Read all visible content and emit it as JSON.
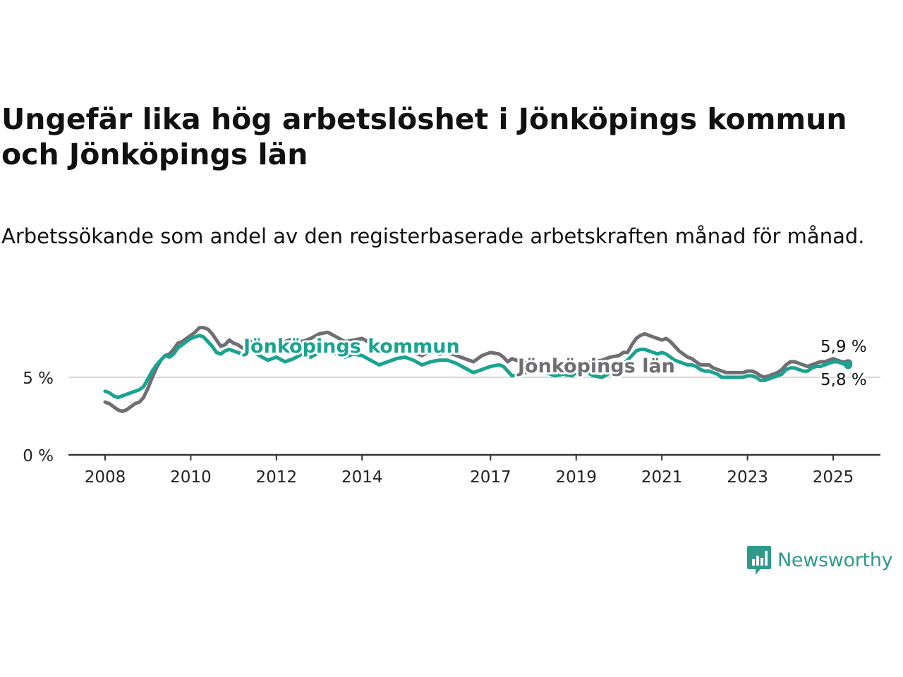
{
  "title": "Ungefär lika hög arbetslöshet i Jönköpings kommun och Jönköpings län",
  "subtitle": "Arbetssökande som andel av den registerbaserade arbetskraften månad för månad.",
  "brand": {
    "name": "Newsworthy",
    "icon": "newsworthy-logo-icon",
    "color": "#2f9a8c"
  },
  "chart_data": {
    "type": "line",
    "ylim": [
      0,
      8.8
    ],
    "y_ticks": [
      {
        "value": 0,
        "label": "0 %"
      },
      {
        "value": 5,
        "label": "5 %"
      }
    ],
    "x_range": [
      2008.0,
      2025.6
    ],
    "x_ticks": [
      {
        "value": 2008,
        "label": "2008"
      },
      {
        "value": 2010,
        "label": "2010"
      },
      {
        "value": 2012,
        "label": "2012"
      },
      {
        "value": 2014,
        "label": "2014"
      },
      {
        "value": 2017,
        "label": "2017"
      },
      {
        "value": 2019,
        "label": "2019"
      },
      {
        "value": 2021,
        "label": "2021"
      },
      {
        "value": 2023,
        "label": "2023"
      },
      {
        "value": 2025,
        "label": "2025"
      }
    ],
    "grid": "horizontal",
    "series": [
      {
        "name": "Jönköpings län",
        "color": "#6e6e73",
        "end_label": "5,9 %",
        "points": [
          [
            2008.0,
            3.4
          ],
          [
            2008.1,
            3.3
          ],
          [
            2008.2,
            3.1
          ],
          [
            2008.3,
            2.9
          ],
          [
            2008.4,
            2.8
          ],
          [
            2008.5,
            2.9
          ],
          [
            2008.6,
            3.1
          ],
          [
            2008.7,
            3.3
          ],
          [
            2008.8,
            3.4
          ],
          [
            2008.9,
            3.7
          ],
          [
            2009.0,
            4.3
          ],
          [
            2009.1,
            5.0
          ],
          [
            2009.2,
            5.6
          ],
          [
            2009.3,
            6.1
          ],
          [
            2009.4,
            6.4
          ],
          [
            2009.5,
            6.5
          ],
          [
            2009.6,
            6.8
          ],
          [
            2009.7,
            7.2
          ],
          [
            2009.8,
            7.3
          ],
          [
            2009.9,
            7.5
          ],
          [
            2010.0,
            7.7
          ],
          [
            2010.1,
            7.9
          ],
          [
            2010.2,
            8.2
          ],
          [
            2010.3,
            8.2
          ],
          [
            2010.4,
            8.1
          ],
          [
            2010.5,
            7.8
          ],
          [
            2010.6,
            7.4
          ],
          [
            2010.7,
            7.0
          ],
          [
            2010.8,
            7.1
          ],
          [
            2010.9,
            7.4
          ],
          [
            2011.0,
            7.2
          ],
          [
            2011.1,
            7.1
          ],
          [
            2011.2,
            6.9
          ],
          [
            2011.3,
            7.0
          ],
          [
            2011.4,
            7.3
          ],
          [
            2011.5,
            7.1
          ],
          [
            2011.6,
            6.9
          ],
          [
            2011.8,
            7.2
          ],
          [
            2012.0,
            7.0
          ],
          [
            2012.2,
            7.3
          ],
          [
            2012.4,
            7.5
          ],
          [
            2012.6,
            7.3
          ],
          [
            2012.8,
            7.5
          ],
          [
            2013.0,
            7.8
          ],
          [
            2013.2,
            7.9
          ],
          [
            2013.4,
            7.6
          ],
          [
            2013.6,
            7.3
          ],
          [
            2013.8,
            7.4
          ],
          [
            2014.0,
            7.5
          ],
          [
            2014.2,
            7.2
          ],
          [
            2014.4,
            6.8
          ],
          [
            2014.6,
            6.9
          ],
          [
            2014.8,
            6.7
          ],
          [
            2015.0,
            6.9
          ],
          [
            2015.2,
            6.6
          ],
          [
            2015.4,
            6.4
          ],
          [
            2015.6,
            6.7
          ],
          [
            2015.8,
            6.5
          ],
          [
            2016.0,
            6.6
          ],
          [
            2016.2,
            6.4
          ],
          [
            2016.4,
            6.2
          ],
          [
            2016.6,
            6.0
          ],
          [
            2016.8,
            6.4
          ],
          [
            2017.0,
            6.6
          ],
          [
            2017.2,
            6.5
          ],
          [
            2017.3,
            6.3
          ],
          [
            2017.4,
            6.0
          ],
          [
            2017.5,
            6.2
          ],
          [
            2017.7,
            6.0
          ],
          [
            2017.9,
            5.9
          ],
          [
            2018.1,
            5.8
          ],
          [
            2018.3,
            5.7
          ],
          [
            2018.5,
            5.6
          ],
          [
            2018.7,
            5.7
          ],
          [
            2018.9,
            5.6
          ],
          [
            2019.0,
            5.8
          ],
          [
            2019.2,
            5.9
          ],
          [
            2019.4,
            6.0
          ],
          [
            2019.6,
            6.1
          ],
          [
            2019.8,
            6.3
          ],
          [
            2020.0,
            6.4
          ],
          [
            2020.1,
            6.6
          ],
          [
            2020.2,
            6.6
          ],
          [
            2020.3,
            7.1
          ],
          [
            2020.4,
            7.5
          ],
          [
            2020.5,
            7.7
          ],
          [
            2020.6,
            7.8
          ],
          [
            2020.7,
            7.7
          ],
          [
            2020.8,
            7.6
          ],
          [
            2020.9,
            7.5
          ],
          [
            2021.0,
            7.4
          ],
          [
            2021.1,
            7.5
          ],
          [
            2021.2,
            7.3
          ],
          [
            2021.3,
            7.0
          ],
          [
            2021.4,
            6.7
          ],
          [
            2021.5,
            6.5
          ],
          [
            2021.6,
            6.3
          ],
          [
            2021.7,
            6.2
          ],
          [
            2021.8,
            6.0
          ],
          [
            2021.9,
            5.8
          ],
          [
            2022.0,
            5.8
          ],
          [
            2022.1,
            5.8
          ],
          [
            2022.2,
            5.6
          ],
          [
            2022.3,
            5.5
          ],
          [
            2022.4,
            5.4
          ],
          [
            2022.5,
            5.3
          ],
          [
            2022.6,
            5.3
          ],
          [
            2022.7,
            5.3
          ],
          [
            2022.8,
            5.3
          ],
          [
            2022.9,
            5.3
          ],
          [
            2023.0,
            5.4
          ],
          [
            2023.1,
            5.4
          ],
          [
            2023.2,
            5.3
          ],
          [
            2023.3,
            5.1
          ],
          [
            2023.4,
            5.0
          ],
          [
            2023.5,
            5.1
          ],
          [
            2023.6,
            5.2
          ],
          [
            2023.7,
            5.3
          ],
          [
            2023.8,
            5.5
          ],
          [
            2023.9,
            5.8
          ],
          [
            2024.0,
            6.0
          ],
          [
            2024.1,
            6.0
          ],
          [
            2024.2,
            5.9
          ],
          [
            2024.3,
            5.8
          ],
          [
            2024.4,
            5.7
          ],
          [
            2024.5,
            5.8
          ],
          [
            2024.6,
            5.9
          ],
          [
            2024.7,
            6.0
          ],
          [
            2024.8,
            6.0
          ],
          [
            2024.9,
            6.1
          ],
          [
            2025.0,
            6.2
          ],
          [
            2025.1,
            6.1
          ],
          [
            2025.2,
            6.0
          ],
          [
            2025.3,
            6.0
          ],
          [
            2025.35,
            5.9
          ]
        ]
      },
      {
        "name": "Jönköpings kommun",
        "color": "#1aa391",
        "end_label": "5,8 %",
        "points": [
          [
            2008.0,
            4.1
          ],
          [
            2008.1,
            4.0
          ],
          [
            2008.2,
            3.8
          ],
          [
            2008.3,
            3.7
          ],
          [
            2008.4,
            3.8
          ],
          [
            2008.5,
            3.9
          ],
          [
            2008.6,
            4.0
          ],
          [
            2008.7,
            4.1
          ],
          [
            2008.8,
            4.2
          ],
          [
            2008.9,
            4.4
          ],
          [
            2009.0,
            4.9
          ],
          [
            2009.1,
            5.4
          ],
          [
            2009.2,
            5.8
          ],
          [
            2009.3,
            6.1
          ],
          [
            2009.4,
            6.4
          ],
          [
            2009.5,
            6.3
          ],
          [
            2009.6,
            6.5
          ],
          [
            2009.7,
            6.9
          ],
          [
            2009.8,
            7.1
          ],
          [
            2009.9,
            7.3
          ],
          [
            2010.0,
            7.5
          ],
          [
            2010.1,
            7.6
          ],
          [
            2010.2,
            7.7
          ],
          [
            2010.3,
            7.6
          ],
          [
            2010.4,
            7.3
          ],
          [
            2010.5,
            7.0
          ],
          [
            2010.6,
            6.6
          ],
          [
            2010.7,
            6.5
          ],
          [
            2010.8,
            6.7
          ],
          [
            2010.9,
            6.8
          ],
          [
            2011.0,
            6.7
          ],
          [
            2011.1,
            6.6
          ],
          [
            2011.2,
            6.5
          ],
          [
            2011.3,
            6.6
          ],
          [
            2011.4,
            6.8
          ],
          [
            2011.5,
            6.6
          ],
          [
            2011.6,
            6.4
          ],
          [
            2011.8,
            6.1
          ],
          [
            2012.0,
            6.3
          ],
          [
            2012.2,
            6.0
          ],
          [
            2012.4,
            6.2
          ],
          [
            2012.6,
            6.5
          ],
          [
            2012.8,
            6.3
          ],
          [
            2013.0,
            6.6
          ],
          [
            2013.2,
            6.8
          ],
          [
            2013.4,
            6.5
          ],
          [
            2013.6,
            6.3
          ],
          [
            2013.8,
            6.5
          ],
          [
            2014.0,
            6.4
          ],
          [
            2014.2,
            6.1
          ],
          [
            2014.4,
            5.8
          ],
          [
            2014.6,
            6.0
          ],
          [
            2014.8,
            6.2
          ],
          [
            2015.0,
            6.3
          ],
          [
            2015.2,
            6.1
          ],
          [
            2015.4,
            5.8
          ],
          [
            2015.6,
            6.0
          ],
          [
            2015.8,
            6.1
          ],
          [
            2016.0,
            6.1
          ],
          [
            2016.2,
            5.9
          ],
          [
            2016.4,
            5.6
          ],
          [
            2016.6,
            5.3
          ],
          [
            2016.8,
            5.5
          ],
          [
            2017.0,
            5.7
          ],
          [
            2017.2,
            5.8
          ],
          [
            2017.3,
            5.7
          ],
          [
            2017.4,
            5.4
          ],
          [
            2017.5,
            5.1
          ],
          [
            2017.7,
            5.2
          ],
          [
            2017.9,
            5.4
          ],
          [
            2018.1,
            5.5
          ],
          [
            2018.3,
            5.3
          ],
          [
            2018.5,
            5.1
          ],
          [
            2018.7,
            5.2
          ],
          [
            2018.9,
            5.1
          ],
          [
            2019.0,
            5.3
          ],
          [
            2019.2,
            5.4
          ],
          [
            2019.4,
            5.1
          ],
          [
            2019.6,
            5.0
          ],
          [
            2019.8,
            5.3
          ],
          [
            2020.0,
            5.7
          ],
          [
            2020.1,
            5.9
          ],
          [
            2020.2,
            6.1
          ],
          [
            2020.3,
            6.4
          ],
          [
            2020.4,
            6.7
          ],
          [
            2020.5,
            6.8
          ],
          [
            2020.6,
            6.8
          ],
          [
            2020.7,
            6.7
          ],
          [
            2020.8,
            6.6
          ],
          [
            2020.9,
            6.5
          ],
          [
            2021.0,
            6.6
          ],
          [
            2021.1,
            6.5
          ],
          [
            2021.2,
            6.3
          ],
          [
            2021.3,
            6.1
          ],
          [
            2021.4,
            6.0
          ],
          [
            2021.5,
            5.9
          ],
          [
            2021.6,
            5.8
          ],
          [
            2021.7,
            5.8
          ],
          [
            2021.8,
            5.7
          ],
          [
            2021.9,
            5.5
          ],
          [
            2022.0,
            5.4
          ],
          [
            2022.1,
            5.4
          ],
          [
            2022.2,
            5.3
          ],
          [
            2022.3,
            5.2
          ],
          [
            2022.4,
            5.0
          ],
          [
            2022.5,
            5.0
          ],
          [
            2022.6,
            5.0
          ],
          [
            2022.7,
            5.0
          ],
          [
            2022.8,
            5.0
          ],
          [
            2022.9,
            5.0
          ],
          [
            2023.0,
            5.1
          ],
          [
            2023.1,
            5.1
          ],
          [
            2023.2,
            5.0
          ],
          [
            2023.3,
            4.8
          ],
          [
            2023.4,
            4.8
          ],
          [
            2023.5,
            4.9
          ],
          [
            2023.6,
            5.0
          ],
          [
            2023.7,
            5.1
          ],
          [
            2023.8,
            5.2
          ],
          [
            2023.9,
            5.5
          ],
          [
            2024.0,
            5.6
          ],
          [
            2024.1,
            5.6
          ],
          [
            2024.2,
            5.5
          ],
          [
            2024.3,
            5.4
          ],
          [
            2024.4,
            5.4
          ],
          [
            2024.5,
            5.6
          ],
          [
            2024.6,
            5.7
          ],
          [
            2024.7,
            5.7
          ],
          [
            2024.8,
            5.8
          ],
          [
            2024.9,
            5.9
          ],
          [
            2025.0,
            6.0
          ],
          [
            2025.1,
            6.0
          ],
          [
            2025.2,
            5.9
          ],
          [
            2025.3,
            5.8
          ],
          [
            2025.35,
            5.8
          ]
        ]
      }
    ]
  }
}
